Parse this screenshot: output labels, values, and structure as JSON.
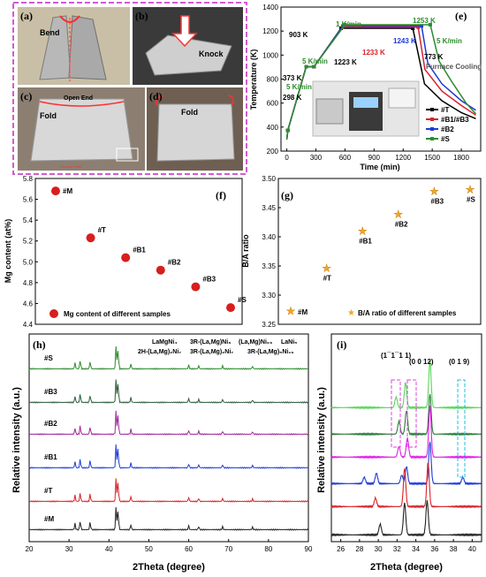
{
  "panel_labels": {
    "a": "(a)",
    "b": "(b)",
    "c": "(c)",
    "d": "(d)",
    "e": "(e)",
    "f": "(f)",
    "g": "(g)",
    "h": "(h)",
    "i": "(i)"
  },
  "photos": {
    "a_label": "Bend",
    "b_label": "Knock",
    "c_label1": "Open End",
    "c_label2": "Fold",
    "c_label3": "Fold",
    "c_inset": "Zirconia Plate",
    "d_label": "Fold"
  },
  "chart_data": [
    {
      "id": "e",
      "type": "line",
      "xlabel": "Time (min)",
      "ylabel": "Temperature (K)",
      "xlim": [
        -60,
        2000
      ],
      "ylim": [
        200,
        1400
      ],
      "xticks": [
        0,
        300,
        600,
        900,
        1200,
        1500,
        1800
      ],
      "yticks": [
        200,
        400,
        600,
        800,
        1000,
        1200,
        1400
      ],
      "series": [
        {
          "name": "#T",
          "color": "#000000",
          "x": [
            0,
            10,
            200,
            280,
            560,
            1300,
            1420,
            1600,
            1800,
            1950
          ],
          "y": [
            298,
            373,
            903,
            903,
            1223,
            1223,
            760,
            620,
            520,
            470
          ]
        },
        {
          "name": "#B1/#B3",
          "color": "#d8222a",
          "x": [
            0,
            10,
            200,
            280,
            575,
            1355,
            1425,
            1600,
            1800,
            1950
          ],
          "y": [
            298,
            373,
            903,
            903,
            1233,
            1233,
            880,
            700,
            580,
            500
          ]
        },
        {
          "name": "#B2",
          "color": "#1f3bd6",
          "x": [
            0,
            10,
            200,
            280,
            580,
            1390,
            1455,
            1600,
            1800,
            1950
          ],
          "y": [
            298,
            373,
            903,
            903,
            1243,
            1243,
            930,
            760,
            620,
            540
          ]
        },
        {
          "name": "#S",
          "color": "#2e8b2e",
          "x": [
            0,
            10,
            200,
            280,
            600,
            1480,
            1570,
            1700,
            1850,
            1950
          ],
          "y": [
            298,
            373,
            903,
            903,
            1253,
            1253,
            950,
            780,
            600,
            510
          ]
        }
      ],
      "annotations": [
        {
          "text": "1400",
          "kind": "tick"
        },
        {
          "text": "903 K"
        },
        {
          "text": "1 K/min"
        },
        {
          "text": "1253 K"
        },
        {
          "text": "1233 K"
        },
        {
          "text": "1243 K"
        },
        {
          "text": "1223 K"
        },
        {
          "text": "5 K/min"
        },
        {
          "text": "773 K"
        },
        {
          "text": "Furnace Cooling"
        },
        {
          "text": "5 K/min"
        },
        {
          "text": "373 K"
        },
        {
          "text": "5 K/min"
        },
        {
          "text": "298 K"
        }
      ],
      "legend": "bottom-right"
    },
    {
      "id": "f",
      "type": "scatter",
      "xlabel": "",
      "ylabel": "Mg content (at%)",
      "ylim": [
        4.4,
        5.8
      ],
      "yticks": [
        4.4,
        4.6,
        4.8,
        5.0,
        5.2,
        5.4,
        5.6,
        5.8
      ],
      "points": [
        {
          "label": "#M",
          "y": 5.68
        },
        {
          "label": "#T",
          "y": 5.23
        },
        {
          "label": "#B1",
          "y": 5.04
        },
        {
          "label": "#B2",
          "y": 4.92
        },
        {
          "label": "#B3",
          "y": 4.76
        },
        {
          "label": "#S",
          "y": 4.56
        }
      ],
      "legend": "Mg content of different samples",
      "marker_color": "#d81e1e"
    },
    {
      "id": "g",
      "type": "scatter",
      "xlabel": "",
      "ylabel": "B/A ratio",
      "ylim": [
        3.25,
        3.5
      ],
      "yticks": [
        3.25,
        3.3,
        3.35,
        3.4,
        3.45,
        3.5
      ],
      "points": [
        {
          "label": "#M",
          "y": 3.273
        },
        {
          "label": "#T",
          "y": 3.346
        },
        {
          "label": "#B1",
          "y": 3.41
        },
        {
          "label": "#B2",
          "y": 3.439
        },
        {
          "label": "#B3",
          "y": 3.478
        },
        {
          "label": "#S",
          "y": 3.481
        }
      ],
      "legend": "B/A ratio of different samples",
      "marker_color": "#f5a623"
    },
    {
      "id": "h",
      "type": "line",
      "xlabel": "2Theta (degree)",
      "ylabel": "Relative intensity (a.u.)",
      "xlim": [
        20,
        90
      ],
      "xticks": [
        20,
        30,
        40,
        50,
        60,
        70,
        80,
        90
      ],
      "series": [
        {
          "name": "#S",
          "color": "#2e8b2e"
        },
        {
          "name": "#B3",
          "color": "#2a5d3a"
        },
        {
          "name": "#B2",
          "color": "#a0289a"
        },
        {
          "name": "#B1",
          "color": "#1f3bd6"
        },
        {
          "name": "#T",
          "color": "#d8222a"
        },
        {
          "name": "#M",
          "color": "#222222"
        }
      ],
      "legend_entries": [
        "LaMgNi₄",
        "3R-(La,Mg)Ni₃",
        "(La,Mg)Ni₂₃",
        "LaNi₅",
        "2H-(La,Mg)₂Ni₇",
        "3R-(La,Mg)₂Ni₇",
        "3R-(La,Mg)₅Ni₁₉"
      ]
    },
    {
      "id": "i",
      "type": "line",
      "xlabel": "2Theta (degree)",
      "ylabel": "Relative intensity (a.u.)",
      "xlim": [
        25,
        41
      ],
      "xticks": [
        26,
        28,
        30,
        32,
        34,
        36,
        38,
        40
      ],
      "annotations": [
        "(1¯1¯1 1)",
        "(0 0 12)",
        "(0 1 9)"
      ],
      "series": [
        {
          "color": "#59d659"
        },
        {
          "color": "#2e7d3a"
        },
        {
          "color": "#e11ee6"
        },
        {
          "color": "#1f3bd6"
        },
        {
          "color": "#d8222a"
        },
        {
          "color": "#222222"
        }
      ]
    }
  ]
}
